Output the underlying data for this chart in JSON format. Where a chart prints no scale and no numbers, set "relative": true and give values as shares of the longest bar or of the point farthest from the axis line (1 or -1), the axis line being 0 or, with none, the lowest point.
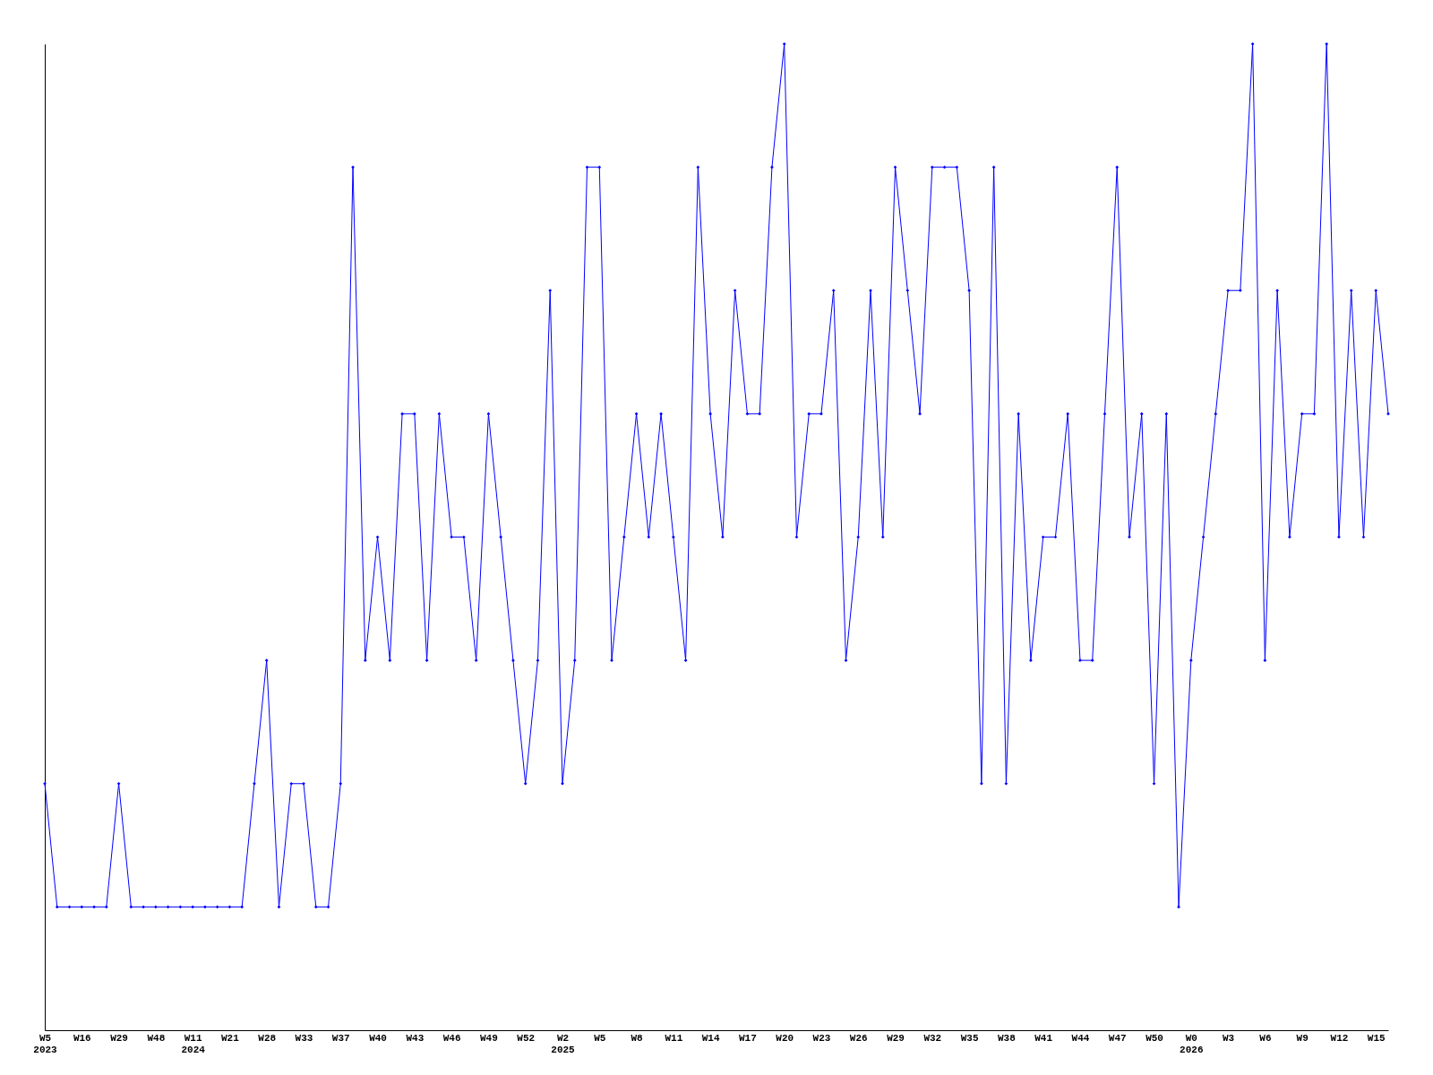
{
  "chart_data": {
    "type": "line",
    "relative": true,
    "grid": false,
    "marker": "diamond",
    "line_style": "solid",
    "categories": [
      "W5\n2023",
      null,
      null,
      "W16",
      null,
      null,
      "W29",
      null,
      null,
      "W48",
      null,
      null,
      "W11\n2024",
      null,
      null,
      "W21",
      null,
      null,
      "W28",
      null,
      null,
      "W33",
      null,
      null,
      "W37",
      null,
      null,
      "W40",
      null,
      null,
      "W43",
      null,
      null,
      "W46",
      null,
      null,
      "W49",
      null,
      null,
      "W52",
      null,
      null,
      "W2\n2025",
      null,
      null,
      "W5",
      null,
      null,
      "W8",
      null,
      null,
      "W11",
      null,
      null,
      "W14",
      null,
      null,
      "W17",
      null,
      null,
      "W20",
      null,
      null,
      "W23",
      null,
      null,
      "W26",
      null,
      null,
      "W29",
      null,
      null,
      "W32",
      null,
      null,
      "W35",
      null,
      null,
      "W38",
      null,
      null,
      "W41",
      null,
      null,
      "W44",
      null,
      null,
      "W47",
      null,
      null,
      "W50",
      null,
      null,
      "W0\n2026",
      null,
      null,
      "W3",
      null,
      null,
      "W6",
      null,
      null,
      "W9",
      null,
      null,
      "W12",
      null,
      null,
      "W15",
      null
    ],
    "series": [
      {
        "color": "#0000ff",
        "values": [
          0.25,
          0.125,
          0.125,
          0.125,
          0.125,
          0.125,
          0.25,
          0.125,
          0.125,
          0.125,
          0.125,
          0.125,
          0.125,
          0.125,
          0.125,
          0.125,
          0.125,
          0.25,
          0.375,
          0.125,
          0.25,
          0.25,
          0.125,
          0.125,
          0.25,
          0.875,
          0.375,
          0.5,
          0.375,
          0.625,
          0.625,
          0.375,
          0.625,
          0.5,
          0.5,
          0.375,
          0.625,
          0.5,
          0.375,
          0.25,
          0.375,
          0.75,
          0.25,
          0.375,
          0.875,
          0.875,
          0.375,
          0.5,
          0.625,
          0.5,
          0.625,
          0.5,
          0.375,
          0.875,
          0.625,
          0.5,
          0.75,
          0.625,
          0.625,
          0.875,
          1,
          0.5,
          0.625,
          0.625,
          0.75,
          0.375,
          0.5,
          0.75,
          0.5,
          0.875,
          0.75,
          0.625,
          0.875,
          0.875,
          0.875,
          0.75,
          0.25,
          0.875,
          0.25,
          0.625,
          0.375,
          0.5,
          0.5,
          0.625,
          0.375,
          0.375,
          0.625,
          0.875,
          0.5,
          0.625,
          0.25,
          0.625,
          0.125,
          0.375,
          0.5,
          0.625,
          0.75,
          0.75,
          1,
          0.375,
          0.75,
          0.5,
          0.625,
          0.625,
          1,
          0.5,
          0.75,
          0.5,
          0.75,
          0.625
        ]
      }
    ]
  }
}
